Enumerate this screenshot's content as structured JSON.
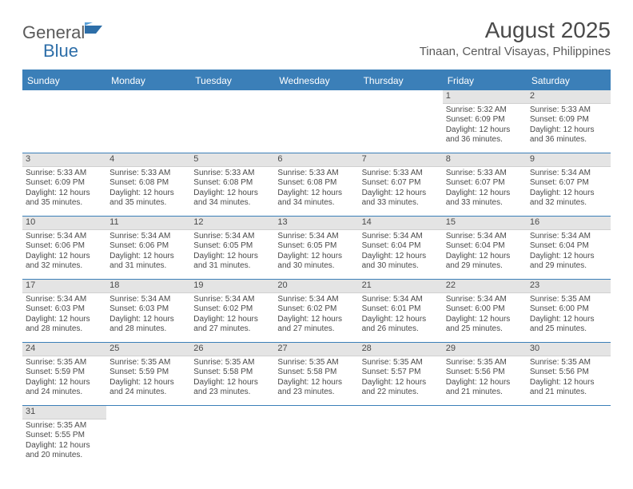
{
  "logo": {
    "text1": "General",
    "text2": "Blue"
  },
  "title": "August 2025",
  "location": "Tinaan, Central Visayas, Philippines",
  "header_bg": "#3b7fb8",
  "dayHeaders": [
    "Sunday",
    "Monday",
    "Tuesday",
    "Wednesday",
    "Thursday",
    "Friday",
    "Saturday"
  ],
  "weeks": [
    [
      {
        "n": "",
        "blank": true
      },
      {
        "n": "",
        "blank": true
      },
      {
        "n": "",
        "blank": true
      },
      {
        "n": "",
        "blank": true
      },
      {
        "n": "",
        "blank": true
      },
      {
        "n": "1",
        "sr": "5:32 AM",
        "ss": "6:09 PM",
        "dl": "12 hours and 36 minutes."
      },
      {
        "n": "2",
        "sr": "5:33 AM",
        "ss": "6:09 PM",
        "dl": "12 hours and 36 minutes."
      }
    ],
    [
      {
        "n": "3",
        "sr": "5:33 AM",
        "ss": "6:09 PM",
        "dl": "12 hours and 35 minutes."
      },
      {
        "n": "4",
        "sr": "5:33 AM",
        "ss": "6:08 PM",
        "dl": "12 hours and 35 minutes."
      },
      {
        "n": "5",
        "sr": "5:33 AM",
        "ss": "6:08 PM",
        "dl": "12 hours and 34 minutes."
      },
      {
        "n": "6",
        "sr": "5:33 AM",
        "ss": "6:08 PM",
        "dl": "12 hours and 34 minutes."
      },
      {
        "n": "7",
        "sr": "5:33 AM",
        "ss": "6:07 PM",
        "dl": "12 hours and 33 minutes."
      },
      {
        "n": "8",
        "sr": "5:33 AM",
        "ss": "6:07 PM",
        "dl": "12 hours and 33 minutes."
      },
      {
        "n": "9",
        "sr": "5:34 AM",
        "ss": "6:07 PM",
        "dl": "12 hours and 32 minutes."
      }
    ],
    [
      {
        "n": "10",
        "sr": "5:34 AM",
        "ss": "6:06 PM",
        "dl": "12 hours and 32 minutes."
      },
      {
        "n": "11",
        "sr": "5:34 AM",
        "ss": "6:06 PM",
        "dl": "12 hours and 31 minutes."
      },
      {
        "n": "12",
        "sr": "5:34 AM",
        "ss": "6:05 PM",
        "dl": "12 hours and 31 minutes."
      },
      {
        "n": "13",
        "sr": "5:34 AM",
        "ss": "6:05 PM",
        "dl": "12 hours and 30 minutes."
      },
      {
        "n": "14",
        "sr": "5:34 AM",
        "ss": "6:04 PM",
        "dl": "12 hours and 30 minutes."
      },
      {
        "n": "15",
        "sr": "5:34 AM",
        "ss": "6:04 PM",
        "dl": "12 hours and 29 minutes."
      },
      {
        "n": "16",
        "sr": "5:34 AM",
        "ss": "6:04 PM",
        "dl": "12 hours and 29 minutes."
      }
    ],
    [
      {
        "n": "17",
        "sr": "5:34 AM",
        "ss": "6:03 PM",
        "dl": "12 hours and 28 minutes."
      },
      {
        "n": "18",
        "sr": "5:34 AM",
        "ss": "6:03 PM",
        "dl": "12 hours and 28 minutes."
      },
      {
        "n": "19",
        "sr": "5:34 AM",
        "ss": "6:02 PM",
        "dl": "12 hours and 27 minutes."
      },
      {
        "n": "20",
        "sr": "5:34 AM",
        "ss": "6:02 PM",
        "dl": "12 hours and 27 minutes."
      },
      {
        "n": "21",
        "sr": "5:34 AM",
        "ss": "6:01 PM",
        "dl": "12 hours and 26 minutes."
      },
      {
        "n": "22",
        "sr": "5:34 AM",
        "ss": "6:00 PM",
        "dl": "12 hours and 25 minutes."
      },
      {
        "n": "23",
        "sr": "5:35 AM",
        "ss": "6:00 PM",
        "dl": "12 hours and 25 minutes."
      }
    ],
    [
      {
        "n": "24",
        "sr": "5:35 AM",
        "ss": "5:59 PM",
        "dl": "12 hours and 24 minutes."
      },
      {
        "n": "25",
        "sr": "5:35 AM",
        "ss": "5:59 PM",
        "dl": "12 hours and 24 minutes."
      },
      {
        "n": "26",
        "sr": "5:35 AM",
        "ss": "5:58 PM",
        "dl": "12 hours and 23 minutes."
      },
      {
        "n": "27",
        "sr": "5:35 AM",
        "ss": "5:58 PM",
        "dl": "12 hours and 23 minutes."
      },
      {
        "n": "28",
        "sr": "5:35 AM",
        "ss": "5:57 PM",
        "dl": "12 hours and 22 minutes."
      },
      {
        "n": "29",
        "sr": "5:35 AM",
        "ss": "5:56 PM",
        "dl": "12 hours and 21 minutes."
      },
      {
        "n": "30",
        "sr": "5:35 AM",
        "ss": "5:56 PM",
        "dl": "12 hours and 21 minutes."
      }
    ],
    [
      {
        "n": "31",
        "sr": "5:35 AM",
        "ss": "5:55 PM",
        "dl": "12 hours and 20 minutes."
      },
      {
        "n": "",
        "blank": true
      },
      {
        "n": "",
        "blank": true
      },
      {
        "n": "",
        "blank": true
      },
      {
        "n": "",
        "blank": true
      },
      {
        "n": "",
        "blank": true
      },
      {
        "n": "",
        "blank": true
      }
    ]
  ],
  "labels": {
    "sunrise": "Sunrise:",
    "sunset": "Sunset:",
    "daylight": "Daylight:"
  }
}
